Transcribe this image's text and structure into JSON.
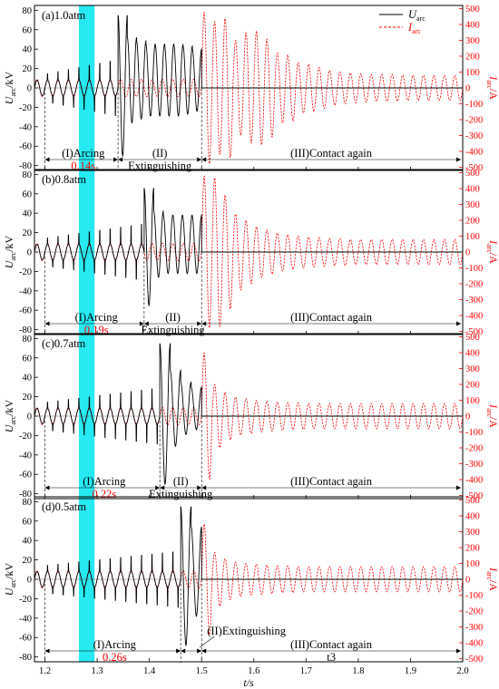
{
  "chart_data": {
    "type": "line",
    "x_axis": {
      "label": "t/s",
      "ticks": [
        "1.2",
        "1.3",
        "1.4",
        "1.5",
        "1.6",
        "1.7",
        "1.8",
        "1.9",
        "2.0"
      ],
      "range": [
        1.18,
        2.0
      ]
    },
    "y_left": {
      "label_main": "U",
      "label_sub": "arc",
      "label_unit": "/kV",
      "range": [
        -85,
        85
      ],
      "ticks": [
        "80",
        "60",
        "40",
        "20",
        "0",
        "-20",
        "-40",
        "-60",
        "-80"
      ]
    },
    "y_right": {
      "label_main": "I",
      "label_sub": "arc",
      "label_unit": "/A",
      "range": [
        -520,
        520
      ],
      "ticks": [
        "500",
        "400",
        "300",
        "200",
        "100",
        "0",
        "-100",
        "-200",
        "-300",
        "-400",
        "-500"
      ]
    },
    "legend": {
      "placement": "top-right",
      "entries": [
        {
          "main": "U",
          "sub": "arc",
          "style": "solid",
          "color": "#000000"
        },
        {
          "main": "I",
          "sub": "arc",
          "style": "dashed",
          "color": "#ff0000"
        }
      ]
    },
    "highlight_band": {
      "x_start": 1.265,
      "x_end": 1.295,
      "color": "#00e5ee"
    },
    "series_colors": {
      "voltage": "#000000",
      "current": "#ff0000"
    },
    "panels": [
      {
        "label": "(a)1.0atm",
        "arc_end": 1.34,
        "extinguish_end": 1.5,
        "arcing_duration": "0.14s",
        "voltage_peaks": [
          75,
          52,
          48,
          45,
          45,
          45,
          45,
          43,
          40
        ],
        "voltage_first_min": -70,
        "current_peaks": [
          480,
          420,
          440,
          300,
          350,
          360,
          310,
          220,
          210,
          160,
          150,
          130,
          110,
          100,
          95,
          90,
          85,
          85,
          85,
          80,
          80,
          80,
          80,
          80,
          80
        ],
        "region_labels": {
          "arcing": "(I)Arcing",
          "phase2": "(II)",
          "extinguishing": "Extinguishing",
          "contact": "(III)Contact again"
        }
      },
      {
        "label": "(b)0.8atm",
        "arc_end": 1.39,
        "extinguish_end": 1.5,
        "arcing_duration": "0.19s",
        "voltage_peaks": [
          66,
          42,
          38,
          38,
          38,
          38
        ],
        "voltage_first_min": -55,
        "current_peaks": [
          480,
          470,
          360,
          240,
          200,
          160,
          140,
          120,
          110,
          100,
          95,
          90,
          85,
          85,
          80,
          80,
          80,
          80,
          80,
          80,
          80,
          80,
          80,
          80,
          80
        ],
        "region_labels": {
          "arcing": "(I)Arcing",
          "phase2": "(II)",
          "extinguishing": "Extinguishing",
          "contact": "(III)Contact again"
        }
      },
      {
        "label": "(c)0.7atm",
        "arc_end": 1.42,
        "extinguish_end": 1.5,
        "arcing_duration": "0.22s",
        "voltage_peaks": [
          75,
          47,
          35,
          30
        ],
        "voltage_first_min": -70,
        "current_peaks": [
          400,
          200,
          150,
          120,
          110,
          100,
          95,
          90,
          85,
          85,
          80,
          80,
          80,
          80,
          80,
          80,
          80,
          80,
          80,
          80,
          80,
          80,
          80,
          80,
          80
        ],
        "region_labels": {
          "arcing": "(I)Arcing",
          "phase2": "(II)",
          "extinguishing": "Extinguishing",
          "contact": "(III)Contact again"
        }
      },
      {
        "label": "(d)0.5atm",
        "arc_end": 1.46,
        "extinguish_end": 1.5,
        "arcing_duration": "0.26s",
        "voltage_peaks": [
          75,
          54
        ],
        "voltage_first_min": -68,
        "current_peaks": [
          350,
          170,
          130,
          110,
          100,
          95,
          90,
          85,
          85,
          80,
          80,
          80,
          80,
          80,
          80,
          80,
          80,
          80,
          80,
          80,
          80,
          80,
          80,
          80,
          80
        ],
        "region_labels": {
          "arcing": "(I)Arcing",
          "phase2": "(II)Extinguishing",
          "extinguishing": "",
          "contact": "(III)Contact again",
          "extra": "t3"
        }
      }
    ]
  }
}
